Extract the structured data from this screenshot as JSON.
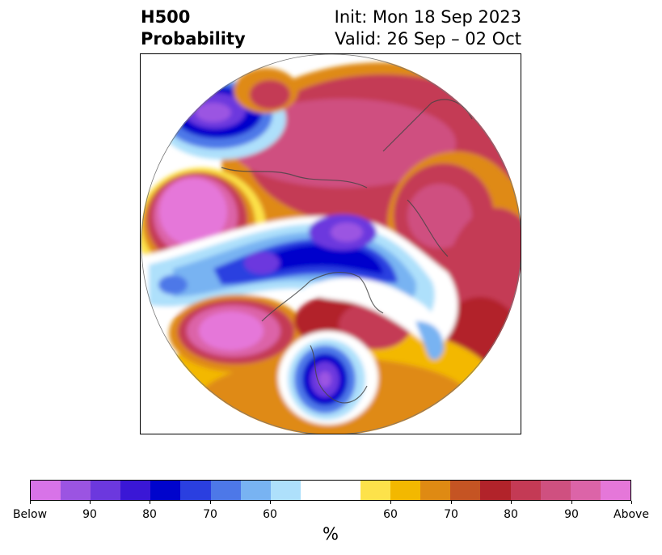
{
  "title": {
    "left_line1": "H500",
    "left_line2": "Probability",
    "right_line1": "Init: Mon 18 Sep 2023",
    "right_line2": "Valid: 26 Sep – 02 Oct"
  },
  "colorbar": {
    "label": "%",
    "below_colors": [
      "#d873e8",
      "#9b54e2",
      "#6c38de",
      "#3a17d6",
      "#0004cc",
      "#2a3fe0",
      "#4d78e8",
      "#78b3f2",
      "#aee0fb"
    ],
    "above_colors": [
      "#fde24a",
      "#f3b800",
      "#df8a13",
      "#c55423",
      "#b2232a",
      "#c43a55",
      "#cf5080",
      "#dc64a8",
      "#e577d9"
    ],
    "ticks": [
      {
        "label": "Below"
      },
      {
        "label": "90"
      },
      {
        "label": "80"
      },
      {
        "label": "70"
      },
      {
        "label": "60"
      },
      {
        "label": "60"
      },
      {
        "label": "70"
      },
      {
        "label": "80"
      },
      {
        "label": "90"
      },
      {
        "label": "Above"
      }
    ]
  }
}
